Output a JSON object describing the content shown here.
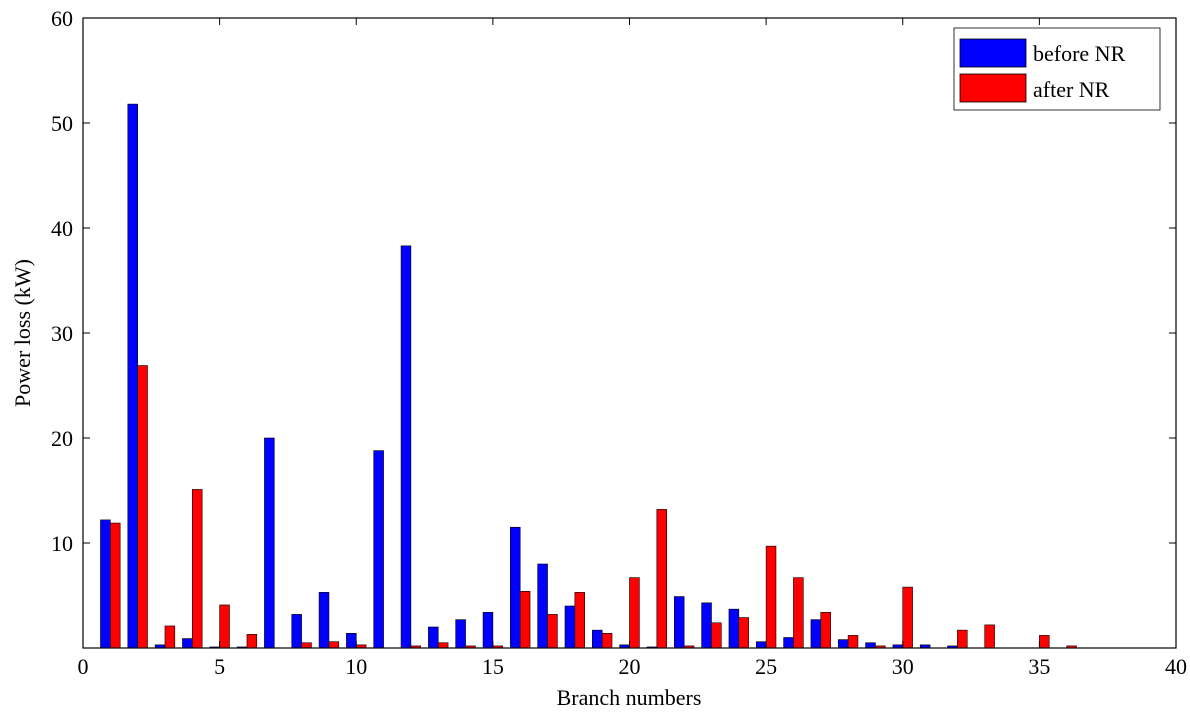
{
  "chart_data": {
    "type": "bar",
    "title": "",
    "xlabel": "Branch numbers",
    "ylabel": "Power loss (kW)",
    "xlim": [
      0,
      40
    ],
    "ylim": [
      0,
      60
    ],
    "xticks": [
      0,
      5,
      10,
      15,
      20,
      25,
      30,
      35,
      40
    ],
    "yticks": [
      10,
      20,
      30,
      40,
      50,
      60
    ],
    "grid": false,
    "legend_position": "top-right",
    "categories": [
      1,
      2,
      3,
      4,
      5,
      6,
      7,
      8,
      9,
      10,
      11,
      12,
      13,
      14,
      15,
      16,
      17,
      18,
      19,
      20,
      21,
      22,
      23,
      24,
      25,
      26,
      27,
      28,
      29,
      30,
      31,
      32,
      33,
      34,
      35,
      36,
      37
    ],
    "series": [
      {
        "name": "before NR",
        "color": "#0000ff",
        "values": [
          12.2,
          51.8,
          0.3,
          0.9,
          0.1,
          0.1,
          20.0,
          3.2,
          5.3,
          1.4,
          18.8,
          38.3,
          2.0,
          2.7,
          3.4,
          11.5,
          8.0,
          4.0,
          1.7,
          0.3,
          0.1,
          4.9,
          4.3,
          3.7,
          0.6,
          1.0,
          2.7,
          0.8,
          0.5,
          0.3,
          0.3,
          0.2,
          0.0,
          0.0,
          0.0,
          0.0,
          0.0
        ]
      },
      {
        "name": "after NR",
        "color": "#ff0000",
        "values": [
          11.9,
          26.9,
          2.1,
          15.1,
          4.1,
          1.3,
          0.0,
          0.5,
          0.6,
          0.3,
          0.0,
          0.2,
          0.5,
          0.2,
          0.2,
          5.4,
          3.2,
          5.3,
          1.4,
          6.7,
          13.2,
          0.2,
          2.4,
          2.9,
          9.7,
          6.7,
          3.4,
          1.2,
          0.2,
          5.8,
          0.0,
          1.7,
          2.2,
          0.0,
          1.2,
          0.2,
          0.0
        ]
      }
    ]
  }
}
